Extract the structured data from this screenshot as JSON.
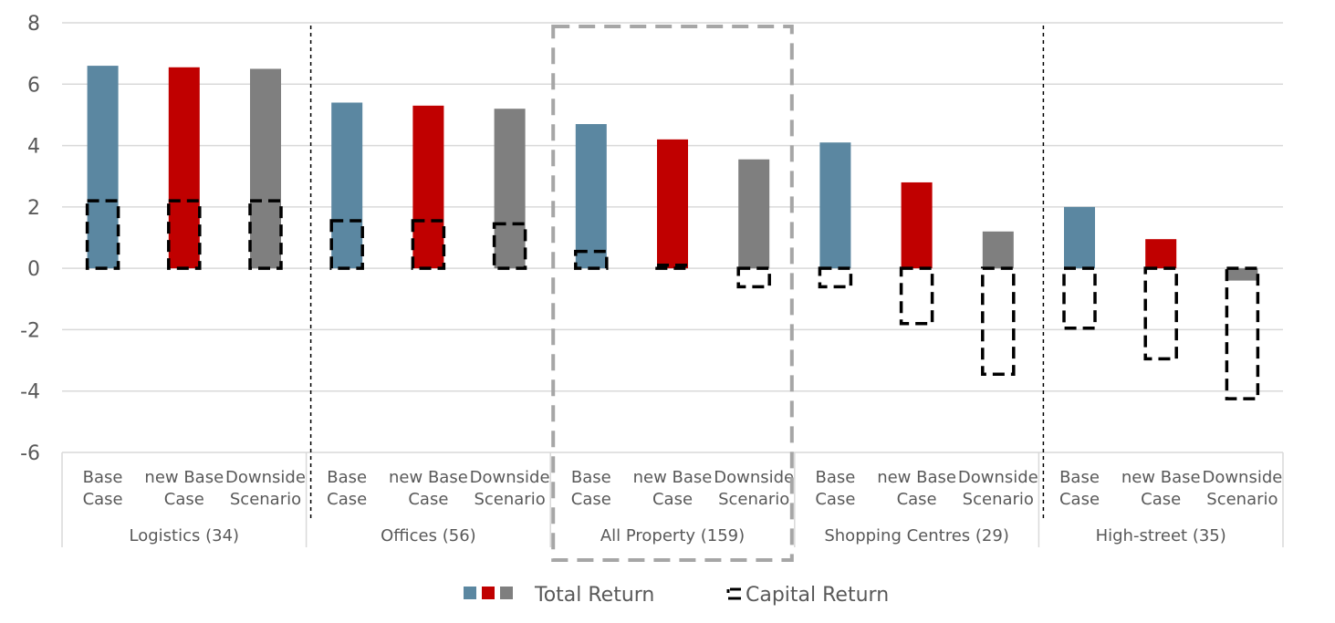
{
  "chart_data": {
    "type": "bar",
    "title": "",
    "xlabel": "",
    "ylabel": "",
    "ylim": [
      -6,
      8
    ],
    "yticks": [
      8,
      6,
      4,
      2,
      0,
      -2,
      -4,
      -6
    ],
    "grid": true,
    "groups": [
      {
        "label": "Logistics (34)",
        "categories": [
          [
            "Base",
            "Case"
          ],
          [
            "new Base",
            "Case"
          ],
          [
            "Downside",
            "Scenario"
          ]
        ],
        "total_return": [
          6.6,
          6.55,
          6.5
        ],
        "capital_return": [
          2.2,
          2.2,
          2.2
        ]
      },
      {
        "label": "Offices (56)",
        "categories": [
          [
            "Base",
            "Case"
          ],
          [
            "new Base",
            "Case"
          ],
          [
            "Downside",
            "Scenario"
          ]
        ],
        "total_return": [
          5.4,
          5.3,
          5.2
        ],
        "capital_return": [
          1.55,
          1.55,
          1.45
        ]
      },
      {
        "label": "All Property (159)",
        "categories": [
          [
            "Base",
            "Case"
          ],
          [
            "new Base",
            "Case"
          ],
          [
            "Downside",
            "Scenario"
          ]
        ],
        "total_return": [
          4.7,
          4.2,
          3.55
        ],
        "capital_return": [
          0.55,
          0.1,
          -0.6
        ]
      },
      {
        "label": "Shopping Centres (29)",
        "categories": [
          [
            "Base",
            "Case"
          ],
          [
            "new Base",
            "Case"
          ],
          [
            "Downside",
            "Scenario"
          ]
        ],
        "total_return": [
          4.1,
          2.8,
          1.2
        ],
        "capital_return": [
          -0.6,
          -1.8,
          -3.45
        ]
      },
      {
        "label": "High-street (35)",
        "categories": [
          [
            "Base",
            "Case"
          ],
          [
            "new Base",
            "Case"
          ],
          [
            "Downside",
            "Scenario"
          ]
        ],
        "total_return": [
          2.0,
          0.95,
          -0.4
        ],
        "capital_return": [
          -1.95,
          -2.95,
          -4.25
        ]
      }
    ],
    "highlighted_group": "All Property (159)",
    "series_colors": [
      "#5b87a1",
      "#c00000",
      "#7f7f7f"
    ],
    "legend": {
      "placement": "bottom",
      "total_return_label": "Total Return",
      "capital_return_label": "Capital Return"
    }
  }
}
